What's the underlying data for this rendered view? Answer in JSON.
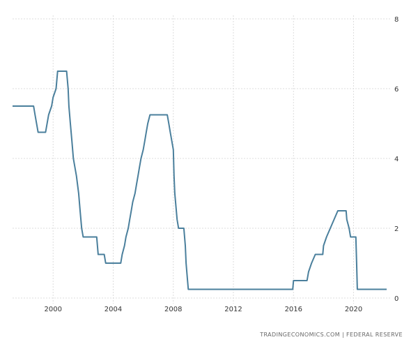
{
  "chart_data": {
    "type": "line",
    "title": "",
    "xlabel": "",
    "ylabel": "",
    "xlim": [
      1997.3,
      2022.2
    ],
    "ylim": [
      0,
      8
    ],
    "x_ticks": [
      "2000",
      "2004",
      "2008",
      "2012",
      "2016",
      "2020"
    ],
    "y_ticks": [
      "0",
      "2",
      "4",
      "6",
      "8"
    ],
    "grid": true,
    "legend": "none",
    "line_color": "#4a7f9c",
    "series": [
      {
        "points": [
          [
            1997.3,
            5.5
          ],
          [
            1998.7,
            5.5
          ],
          [
            1998.8,
            5.25
          ],
          [
            1998.9,
            5.0
          ],
          [
            1999.0,
            4.75
          ],
          [
            1999.5,
            4.75
          ],
          [
            1999.6,
            5.0
          ],
          [
            1999.7,
            5.25
          ],
          [
            1999.9,
            5.5
          ],
          [
            2000.0,
            5.75
          ],
          [
            2000.2,
            6.0
          ],
          [
            2000.3,
            6.5
          ],
          [
            2000.9,
            6.5
          ],
          [
            2001.0,
            6.0
          ],
          [
            2001.05,
            5.5
          ],
          [
            2001.15,
            5.0
          ],
          [
            2001.25,
            4.5
          ],
          [
            2001.35,
            4.0
          ],
          [
            2001.45,
            3.75
          ],
          [
            2001.55,
            3.5
          ],
          [
            2001.7,
            3.0
          ],
          [
            2001.8,
            2.5
          ],
          [
            2001.9,
            2.0
          ],
          [
            2002.0,
            1.75
          ],
          [
            2002.9,
            1.75
          ],
          [
            2003.0,
            1.25
          ],
          [
            2003.4,
            1.25
          ],
          [
            2003.5,
            1.0
          ],
          [
            2004.5,
            1.0
          ],
          [
            2004.6,
            1.25
          ],
          [
            2004.75,
            1.5
          ],
          [
            2004.85,
            1.75
          ],
          [
            2005.0,
            2.0
          ],
          [
            2005.1,
            2.25
          ],
          [
            2005.2,
            2.5
          ],
          [
            2005.3,
            2.75
          ],
          [
            2005.45,
            3.0
          ],
          [
            2005.55,
            3.25
          ],
          [
            2005.65,
            3.5
          ],
          [
            2005.75,
            3.75
          ],
          [
            2005.85,
            4.0
          ],
          [
            2006.0,
            4.25
          ],
          [
            2006.1,
            4.5
          ],
          [
            2006.2,
            4.75
          ],
          [
            2006.3,
            5.0
          ],
          [
            2006.45,
            5.25
          ],
          [
            2007.6,
            5.25
          ],
          [
            2007.7,
            5.0
          ],
          [
            2007.8,
            4.75
          ],
          [
            2007.9,
            4.5
          ],
          [
            2008.0,
            4.25
          ],
          [
            2008.05,
            3.5
          ],
          [
            2008.1,
            3.0
          ],
          [
            2008.25,
            2.25
          ],
          [
            2008.35,
            2.0
          ],
          [
            2008.7,
            2.0
          ],
          [
            2008.8,
            1.5
          ],
          [
            2008.85,
            1.0
          ],
          [
            2008.95,
            0.5
          ],
          [
            2009.0,
            0.25
          ],
          [
            2015.95,
            0.25
          ],
          [
            2016.0,
            0.5
          ],
          [
            2016.9,
            0.5
          ],
          [
            2017.0,
            0.75
          ],
          [
            2017.2,
            1.0
          ],
          [
            2017.45,
            1.25
          ],
          [
            2017.95,
            1.25
          ],
          [
            2018.0,
            1.5
          ],
          [
            2018.2,
            1.75
          ],
          [
            2018.45,
            2.0
          ],
          [
            2018.7,
            2.25
          ],
          [
            2018.95,
            2.5
          ],
          [
            2019.5,
            2.5
          ],
          [
            2019.55,
            2.25
          ],
          [
            2019.7,
            2.0
          ],
          [
            2019.8,
            1.75
          ],
          [
            2020.15,
            1.75
          ],
          [
            2020.2,
            1.0
          ],
          [
            2020.25,
            0.25
          ],
          [
            2022.2,
            0.25
          ]
        ]
      }
    ]
  },
  "source_text": "TRADINGECONOMICS.COM  |  FEDERAL RESERVE"
}
